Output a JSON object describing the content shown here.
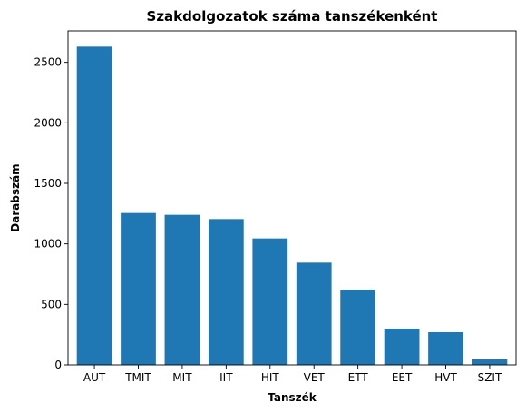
{
  "chart_data": {
    "type": "bar",
    "title": "Szakdolgozatok száma tanszékenként",
    "xlabel": "Tanszék",
    "ylabel": "Darabszám",
    "categories": [
      "AUT",
      "TMIT",
      "MIT",
      "IIT",
      "HIT",
      "VET",
      "ETT",
      "EET",
      "HVT",
      "SZIT"
    ],
    "values": [
      2630,
      1255,
      1240,
      1205,
      1045,
      845,
      620,
      300,
      270,
      45
    ],
    "ylim": [
      0,
      2760
    ],
    "yticks": [
      0,
      500,
      1000,
      1500,
      2000,
      2500
    ],
    "grid": false,
    "bar_color": "#1f77b4"
  }
}
